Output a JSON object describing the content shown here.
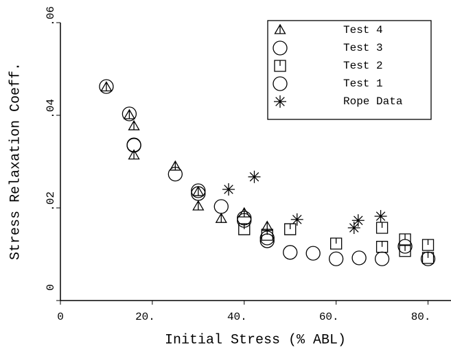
{
  "chart_data": {
    "type": "scatter",
    "x_label": "Initial Stress (% ABL)",
    "y_label": "Stress Relaxation Coeff.",
    "xlim": [
      0,
      85
    ],
    "ylim": [
      0,
      0.06
    ],
    "xticks": [
      0,
      {
        "value": 20,
        "label": "20."
      },
      {
        "value": 40,
        "label": "40."
      },
      {
        "value": 60,
        "label": "60."
      },
      {
        "value": 80,
        "label": "80."
      }
    ],
    "yticks": [
      0,
      {
        "value": 0.02,
        "label": ".02"
      },
      {
        "value": 0.04,
        "label": ".04"
      },
      {
        "value": 0.06,
        "label": ".06"
      }
    ],
    "legend": "upper right",
    "series": [
      {
        "name": "Test 4",
        "color": "#000000",
        "marker": "triangle",
        "x": [
          10,
          15,
          16,
          16,
          25,
          30,
          30,
          35,
          40,
          45
        ],
        "values": [
          0.046,
          0.04,
          0.0376,
          0.0313,
          0.0289,
          0.0234,
          0.0203,
          0.0176,
          0.0188,
          0.0159
        ]
      },
      {
        "name": "Test 3",
        "color": "#000000",
        "marker": "circle",
        "x": [
          10,
          15,
          16,
          25,
          30,
          35,
          40,
          45
        ],
        "values": [
          0.0462,
          0.0403,
          0.0336,
          0.0273,
          0.0237,
          0.0203,
          0.0178,
          0.0129
        ]
      },
      {
        "name": "Test 2",
        "color": "#000000",
        "marker": "square",
        "x": [
          40,
          45,
          50,
          60,
          70,
          70,
          75,
          75,
          80,
          80
        ],
        "values": [
          0.0154,
          0.0142,
          0.0154,
          0.0123,
          0.0157,
          0.0116,
          0.0132,
          0.0107,
          0.012,
          0.0092
        ]
      },
      {
        "name": "Test 1",
        "color": "#000000",
        "marker": "circle",
        "x": [
          16,
          30,
          40,
          45,
          50,
          55,
          60,
          65,
          70,
          75,
          80
        ],
        "values": [
          0.0335,
          0.0231,
          0.0173,
          0.0135,
          0.0104,
          0.0102,
          0.009,
          0.0092,
          0.009,
          0.0117,
          0.009
        ]
      },
      {
        "name": "Rope Data",
        "color": "#000000",
        "marker": "star",
        "x": [
          36.6,
          42.2,
          51.5,
          63.9,
          64.8,
          69.7
        ],
        "values": [
          0.024,
          0.0267,
          0.0175,
          0.0157,
          0.0173,
          0.0182
        ]
      }
    ]
  }
}
